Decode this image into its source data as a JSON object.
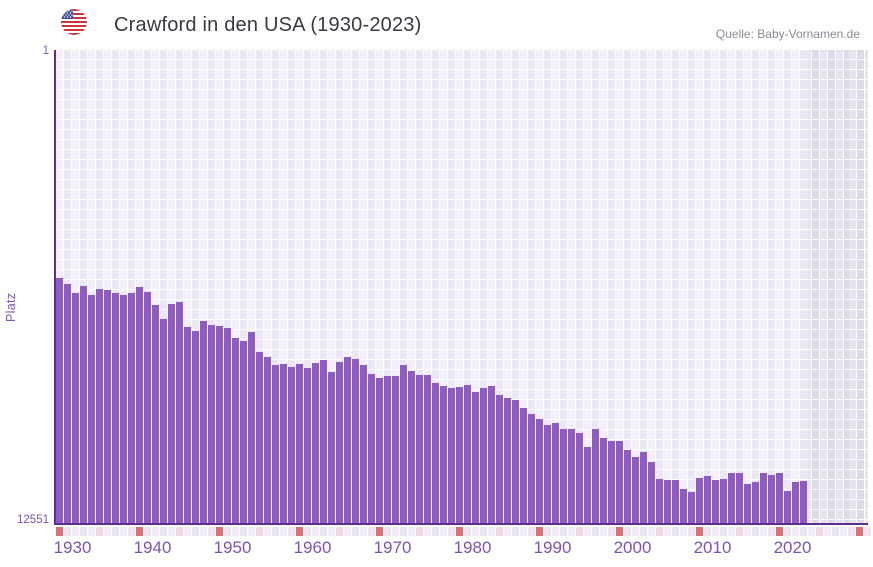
{
  "header": {
    "title": "Crawford in den USA (1930-2023)",
    "source": "Quelle: Baby-Vornamen.de",
    "flag_icon": "us-flag"
  },
  "chart_data": {
    "type": "bar",
    "title": "Crawford in den USA (1930-2023)",
    "ylabel": "Platz",
    "y_axis": {
      "top_label": "1",
      "bottom_label": "12551",
      "min": 1,
      "max": 12551,
      "inverted": true,
      "grid": true
    },
    "x_tick_labels": [
      "1930",
      "1940",
      "1950",
      "1960",
      "1970",
      "1980",
      "1990",
      "2000",
      "2010",
      "2020"
    ],
    "x_range_drawn": [
      1930,
      2031
    ],
    "years": [
      1930,
      1931,
      1932,
      1933,
      1934,
      1935,
      1936,
      1937,
      1938,
      1939,
      1940,
      1941,
      1942,
      1943,
      1944,
      1945,
      1946,
      1947,
      1948,
      1949,
      1950,
      1951,
      1952,
      1953,
      1954,
      1955,
      1956,
      1957,
      1958,
      1959,
      1960,
      1961,
      1962,
      1963,
      1964,
      1965,
      1966,
      1967,
      1968,
      1969,
      1970,
      1971,
      1972,
      1973,
      1974,
      1975,
      1976,
      1977,
      1978,
      1979,
      1980,
      1981,
      1982,
      1983,
      1984,
      1985,
      1986,
      1987,
      1988,
      1989,
      1990,
      1991,
      1992,
      1993,
      1994,
      1995,
      1996,
      1997,
      1998,
      1999,
      2000,
      2001,
      2002,
      2003,
      2004,
      2005,
      2006,
      2007,
      2008,
      2009,
      2010,
      2011,
      2012,
      2013,
      2014,
      2015,
      2016,
      2017,
      2018,
      2019,
      2020,
      2021,
      2022,
      2023
    ],
    "ranks": [
      6051,
      6210,
      6449,
      6263,
      6502,
      6343,
      6369,
      6449,
      6502,
      6449,
      6289,
      6422,
      6768,
      7139,
      6741,
      6688,
      7351,
      7457,
      7191,
      7297,
      7324,
      7377,
      7643,
      7722,
      7483,
      8014,
      8147,
      8359,
      8332,
      8412,
      8332,
      8438,
      8306,
      8226,
      8544,
      8279,
      8147,
      8200,
      8359,
      8597,
      8703,
      8650,
      8650,
      8359,
      8518,
      8624,
      8624,
      8836,
      8916,
      8969,
      8942,
      8889,
      9075,
      8969,
      8916,
      9155,
      9234,
      9287,
      9499,
      9659,
      9791,
      9950,
      9897,
      10057,
      10057,
      10163,
      10534,
      10057,
      10296,
      10375,
      10375,
      10614,
      10800,
      10667,
      10932,
      11383,
      11410,
      11410,
      11649,
      11728,
      11357,
      11304,
      11410,
      11383,
      11224,
      11224,
      11516,
      11463,
      11224,
      11277,
      11224,
      11701,
      11463,
      11436
    ],
    "axis_marker_strip": {
      "strong_every_years": 10,
      "soft_every_years": 5,
      "start_year": 1930,
      "end_year": 2031
    },
    "colors": {
      "bar": "#8f5ac6",
      "axis_line": "#5c2d92",
      "tick_label": "#7e53b9",
      "title_text": "#3c3744",
      "source_text": "#8d8a97",
      "plot_bg": "#edeaf6",
      "nodata_bg": "#e2dfeb",
      "marker_strong": "#dd6f78",
      "marker_soft": "#f6d7de",
      "marker_base_a": "#f0edf7",
      "marker_base_b": "#e9e6f2"
    },
    "legend": null
  }
}
